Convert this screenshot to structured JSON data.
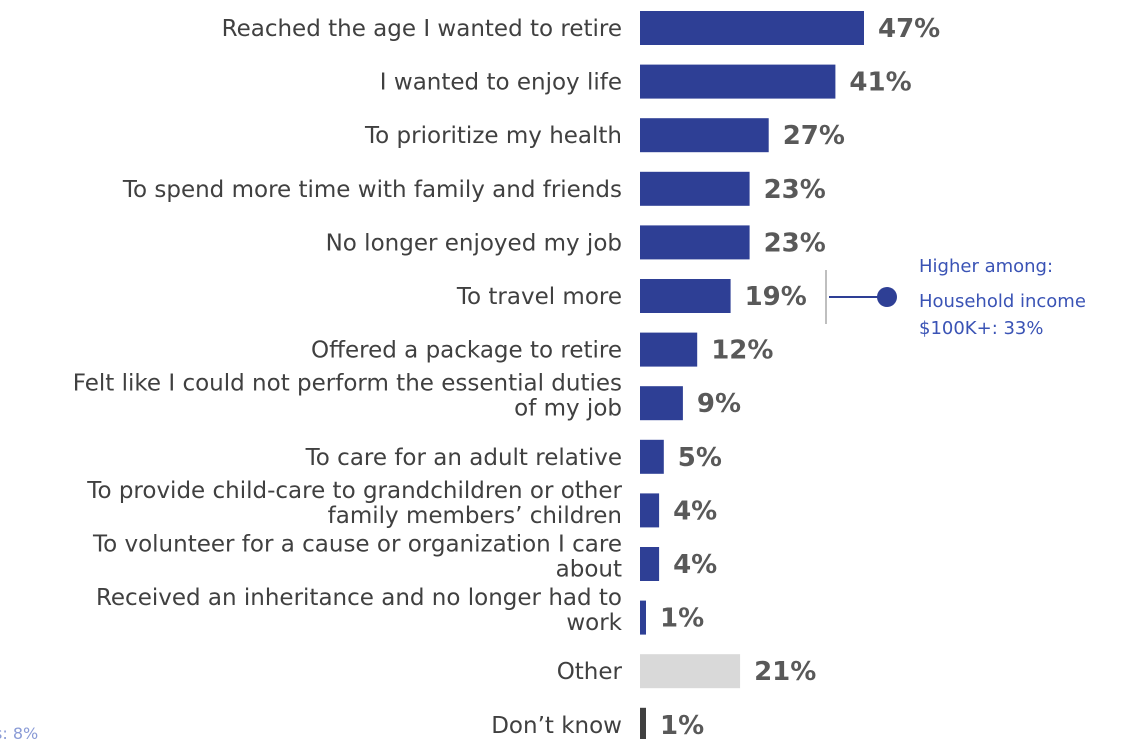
{
  "chart_data": {
    "type": "bar",
    "orientation": "horizontal",
    "categories": [
      [
        "Reached the age I wanted to retire"
      ],
      [
        "I wanted to enjoy life"
      ],
      [
        "To prioritize my health"
      ],
      [
        "To spend more time with family and friends"
      ],
      [
        "No longer enjoyed my job"
      ],
      [
        "To travel more"
      ],
      [
        "Offered a package to retire"
      ],
      [
        "Felt like I could not perform the essential duties",
        "of my job"
      ],
      [
        "To care for an adult relative"
      ],
      [
        "To provide child-care to grandchildren or other",
        "family members’ children"
      ],
      [
        "To volunteer for a cause or organization I care",
        "about"
      ],
      [
        "Received an inheritance and no longer had to",
        "work"
      ],
      [
        "Other"
      ],
      [
        "Don’t know"
      ]
    ],
    "values": [
      47,
      41,
      27,
      23,
      23,
      19,
      12,
      9,
      5,
      4,
      4,
      1,
      21,
      1
    ],
    "value_labels": [
      "47%",
      "41%",
      "27%",
      "23%",
      "23%",
      "19%",
      "12%",
      "9%",
      "5%",
      "4%",
      "4%",
      "1%",
      "21%",
      "1%"
    ],
    "bar_colors": [
      "#2e3f95",
      "#2e3f95",
      "#2e3f95",
      "#2e3f95",
      "#2e3f95",
      "#2e3f95",
      "#2e3f95",
      "#2e3f95",
      "#2e3f95",
      "#2e3f95",
      "#2e3f95",
      "#2e3f95",
      "#d9d9d9",
      "#404040"
    ],
    "xlim": [
      0,
      47
    ],
    "grid": false,
    "legend": "none"
  },
  "callout": {
    "lines": [
      "Higher among:",
      "Household income",
      "$100K+: 33%"
    ],
    "target_category_index": 5,
    "color": "#3a53b5",
    "line_color": "#2e3f95",
    "bracket_color": "#bfbfbf"
  },
  "footnote": {
    "text": "s: 8%",
    "color": "#8a9bd6"
  },
  "colors": {
    "category_text": "#404040",
    "value_text": "#595959"
  }
}
